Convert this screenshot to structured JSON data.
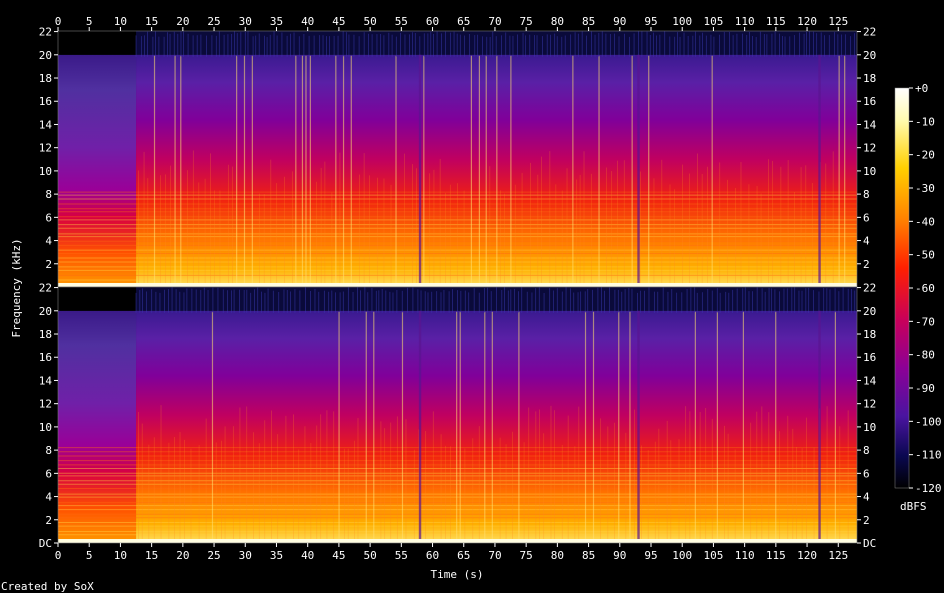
{
  "chart_data": {
    "type": "heatmap",
    "subtype": "spectrogram",
    "title": "",
    "xlabel": "Time (s)",
    "ylabel": "Frequency (kHz)",
    "x_ticks": [
      0,
      5,
      10,
      15,
      20,
      25,
      30,
      35,
      40,
      45,
      50,
      55,
      60,
      65,
      70,
      75,
      80,
      85,
      90,
      95,
      100,
      105,
      110,
      115,
      120,
      125
    ],
    "y_ticks_left": [
      "DC",
      "2",
      "4",
      "6",
      "8",
      "10",
      "12",
      "14",
      "16",
      "18",
      "20",
      "22"
    ],
    "y_ticks_right": [
      "DC",
      "2",
      "4",
      "6",
      "8",
      "10",
      "12",
      "14",
      "16",
      "18",
      "20",
      "22"
    ],
    "xlim": [
      0,
      128
    ],
    "ylim_khz": [
      0,
      22.05
    ],
    "channels": 2,
    "colorbar": {
      "label": "dBFS",
      "ticks": [
        "+0",
        "-10",
        "-20",
        "-30",
        "-40",
        "-50",
        "-60",
        "-70",
        "-80",
        "-90",
        "-100",
        "-110",
        "-120"
      ],
      "range_db": [
        -120,
        0
      ]
    },
    "observed_features": {
      "intro_quiet_until_s": 12.5,
      "bandlimit_khz": 20,
      "quiet_gaps_s": [
        58,
        93,
        122
      ]
    },
    "colors": {
      "high": "#fffde0",
      "mid_high": "#ffbf00",
      "mid": "#ff2a00",
      "mid_low": "#c0007a",
      "low": "#5a0096",
      "floor": "#000000"
    }
  },
  "footer": {
    "credit": "Created by SoX"
  }
}
